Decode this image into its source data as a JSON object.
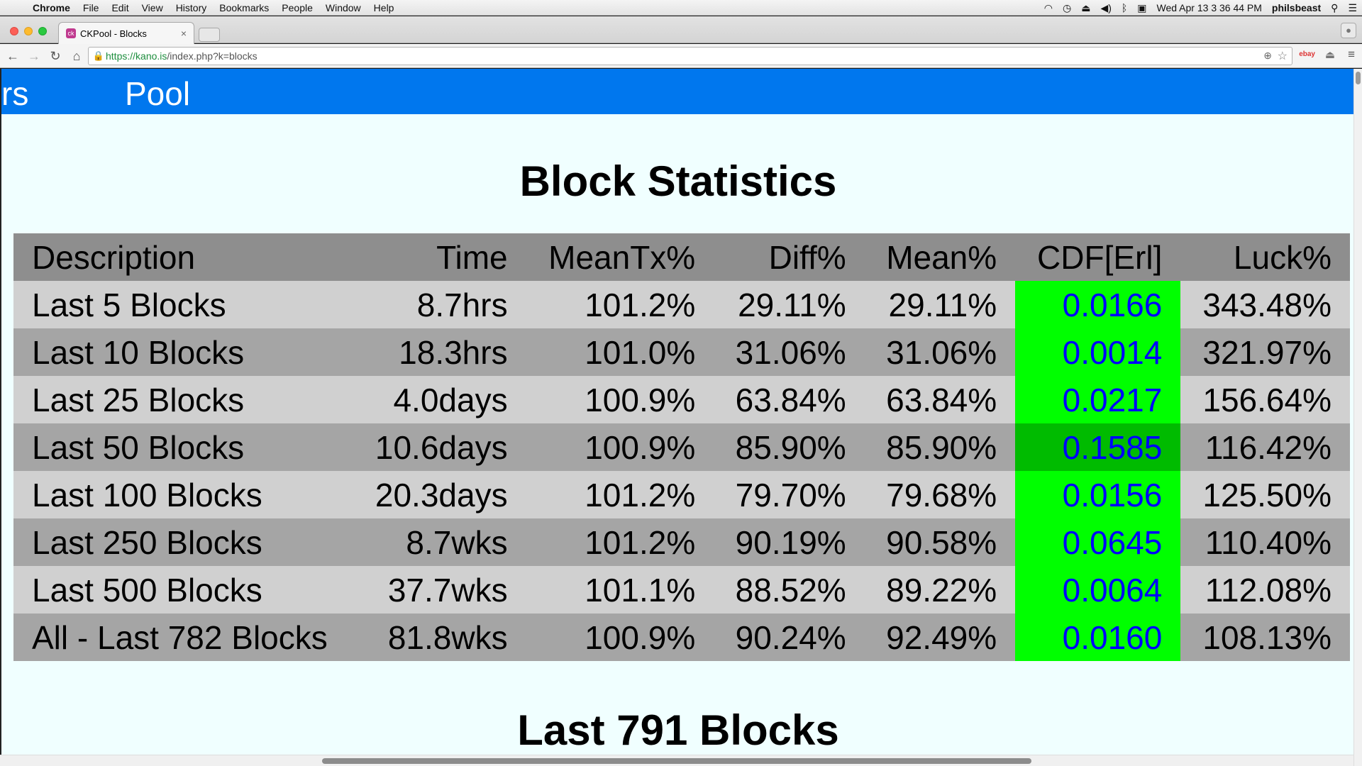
{
  "menubar": {
    "app": "Chrome",
    "items": [
      "File",
      "Edit",
      "View",
      "History",
      "Bookmarks",
      "People",
      "Window",
      "Help"
    ],
    "datetime": "Wed Apr 13  3 36 44 PM",
    "user": "philsbeast"
  },
  "browser": {
    "tab_title": "CKPool - Blocks",
    "url_secure": "https://",
    "url_host": "kano.is",
    "url_path": "/index.php?k=blocks"
  },
  "site": {
    "nav_prev_fragment": "rs",
    "nav_pool": "Pool"
  },
  "page": {
    "title": "Block Statistics",
    "next_title": "Last 791 Blocks"
  },
  "table": {
    "headers": [
      "Description",
      "Time",
      "MeanTx%",
      "Diff%",
      "Mean%",
      "CDF[Erl]",
      "Luck%"
    ],
    "rows": [
      [
        "Last 5 Blocks",
        "8.7hrs",
        "101.2%",
        "29.11%",
        "29.11%",
        "0.0166",
        "343.48%"
      ],
      [
        "Last 10 Blocks",
        "18.3hrs",
        "101.0%",
        "31.06%",
        "31.06%",
        "0.0014",
        "321.97%"
      ],
      [
        "Last 25 Blocks",
        "4.0days",
        "100.9%",
        "63.84%",
        "63.84%",
        "0.0217",
        "156.64%"
      ],
      [
        "Last 50 Blocks",
        "10.6days",
        "100.9%",
        "85.90%",
        "85.90%",
        "0.1585",
        "116.42%"
      ],
      [
        "Last 100 Blocks",
        "20.3days",
        "101.2%",
        "79.70%",
        "79.68%",
        "0.0156",
        "125.50%"
      ],
      [
        "Last 250 Blocks",
        "8.7wks",
        "101.2%",
        "90.19%",
        "90.58%",
        "0.0645",
        "110.40%"
      ],
      [
        "Last 500 Blocks",
        "37.7wks",
        "101.1%",
        "88.52%",
        "89.22%",
        "0.0064",
        "112.08%"
      ],
      [
        "All - Last 782 Blocks",
        "81.8wks",
        "100.9%",
        "90.24%",
        "92.49%",
        "0.0160",
        "108.13%"
      ]
    ]
  },
  "colors": {
    "header_bar": "#0077ee",
    "page_bg": "#f0ffff",
    "cdf_good": "#00ff00",
    "cdf_text": "#0000ff"
  }
}
